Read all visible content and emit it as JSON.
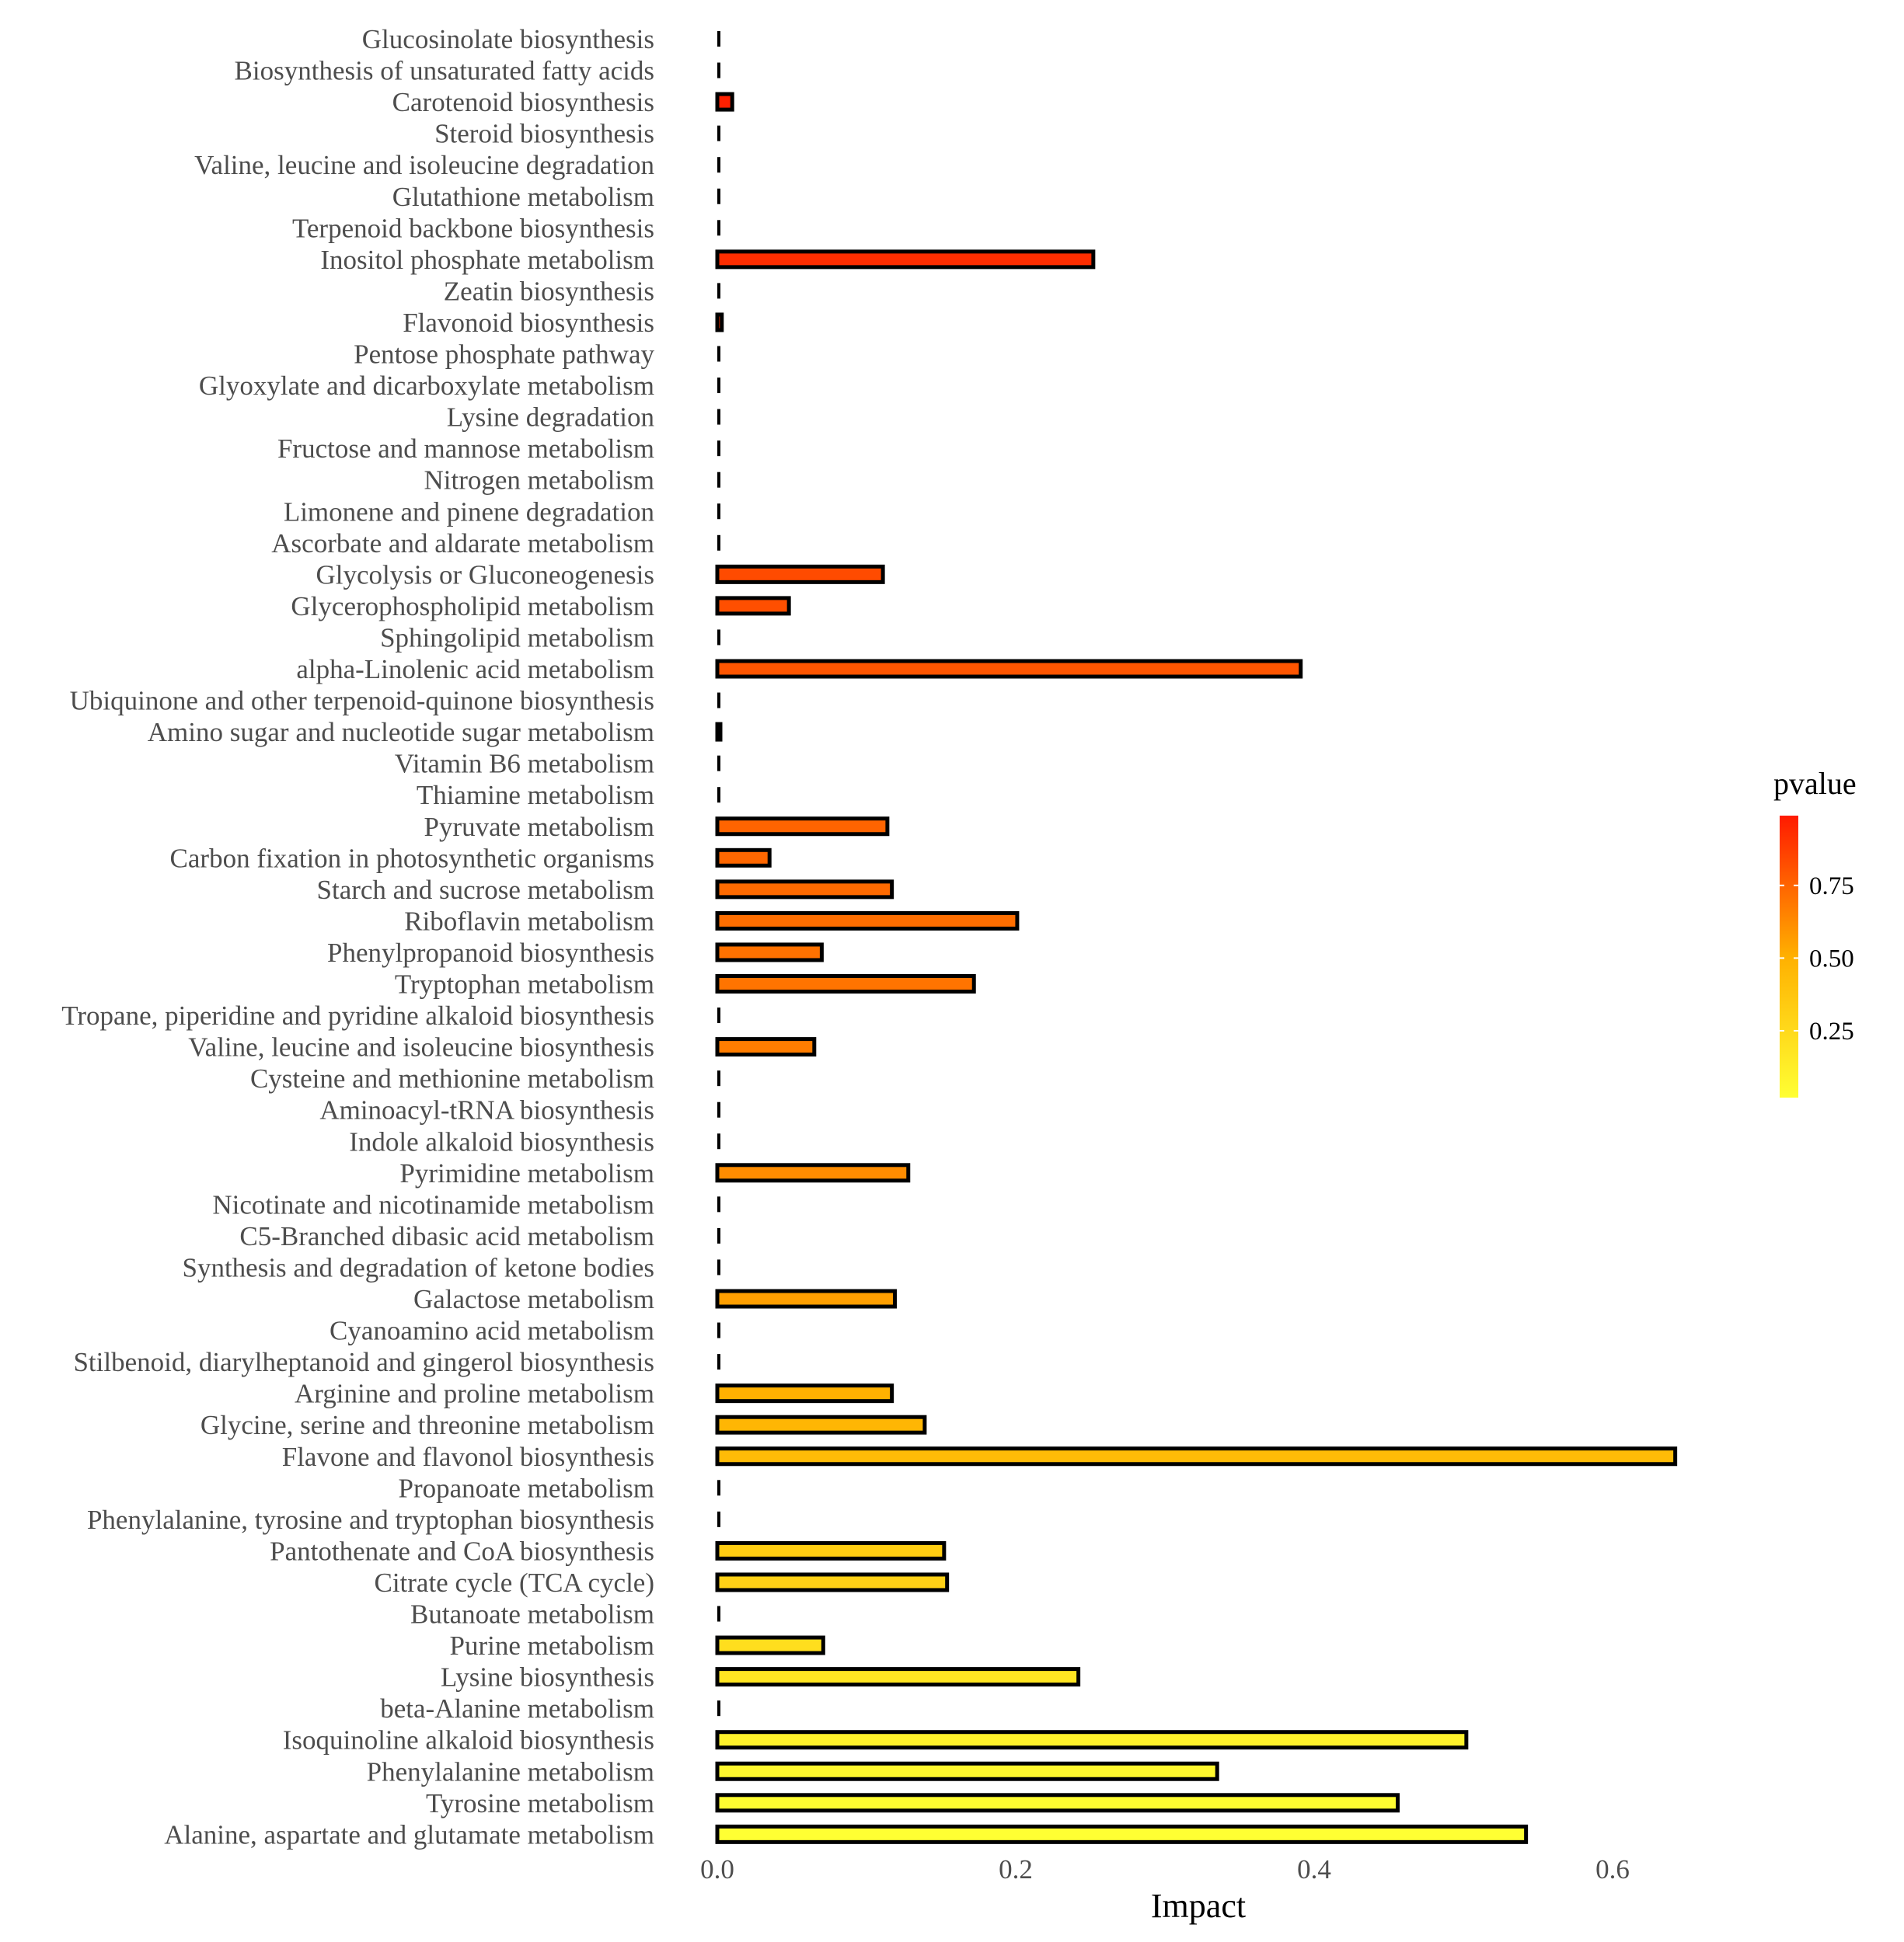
{
  "chart_data": {
    "type": "bar",
    "orientation": "horizontal",
    "xlabel": "Impact",
    "ylabel": "",
    "xlim": [
      0,
      0.7
    ],
    "xticks": [
      0.0,
      0.2,
      0.4,
      0.6
    ],
    "xtick_labels": [
      "0.0",
      "0.2",
      "0.4",
      "0.6"
    ],
    "grid": false,
    "legend": {
      "title": "pvalue",
      "placement": "right",
      "type": "colorbar",
      "ticks": [
        0.75,
        0.5,
        0.25
      ],
      "tick_labels": [
        "0.75",
        "0.50",
        "0.25"
      ],
      "range": [
        0.02,
        0.99
      ],
      "low_color": "#ffff33",
      "high_color": "#ff1a00"
    },
    "bar_outline_color": "#000000",
    "categories": [
      "Glucosinolate biosynthesis",
      "Biosynthesis of unsaturated fatty acids",
      "Carotenoid biosynthesis",
      "Steroid biosynthesis",
      "Valine, leucine and isoleucine degradation",
      "Glutathione metabolism",
      "Terpenoid backbone biosynthesis",
      "Inositol phosphate metabolism",
      "Zeatin biosynthesis",
      "Flavonoid biosynthesis",
      "Pentose phosphate pathway",
      "Glyoxylate and dicarboxylate metabolism",
      "Lysine degradation",
      "Fructose and mannose metabolism",
      "Nitrogen metabolism",
      "Limonene and pinene degradation",
      "Ascorbate and aldarate metabolism",
      "Glycolysis or Gluconeogenesis",
      "Glycerophospholipid metabolism",
      "Sphingolipid metabolism",
      "alpha-Linolenic acid metabolism",
      "Ubiquinone and other terpenoid-quinone biosynthesis",
      "Amino sugar and nucleotide sugar metabolism",
      "Vitamin B6 metabolism",
      "Thiamine metabolism",
      "Pyruvate metabolism",
      "Carbon fixation in photosynthetic organisms",
      "Starch and sucrose metabolism",
      "Riboflavin metabolism",
      "Phenylpropanoid biosynthesis",
      "Tryptophan metabolism",
      "Tropane, piperidine and pyridine alkaloid biosynthesis",
      "Valine, leucine and isoleucine biosynthesis",
      "Cysteine and methionine metabolism",
      "Aminoacyl-tRNA biosynthesis",
      "Indole alkaloid biosynthesis",
      "Pyrimidine metabolism",
      "Nicotinate and nicotinamide metabolism",
      "C5-Branched dibasic acid metabolism",
      "Synthesis and degradation of ketone bodies",
      "Galactose metabolism",
      "Cyanoamino acid metabolism",
      "Stilbenoid, diarylheptanoid and gingerol biosynthesis",
      "Arginine and proline metabolism",
      "Glycine, serine and threonine metabolism",
      "Flavone and flavonol biosynthesis",
      "Propanoate metabolism",
      "Phenylalanine, tyrosine and tryptophan biosynthesis",
      "Pantothenate and CoA biosynthesis",
      "Citrate cycle (TCA cycle)",
      "Butanoate metabolism",
      "Purine metabolism",
      "Lysine biosynthesis",
      "beta-Alanine metabolism",
      "Isoquinoline alkaloid biosynthesis",
      "Phenylalanine metabolism",
      "Tyrosine metabolism",
      "Alanine, aspartate and glutamate metabolism"
    ],
    "values": [
      0,
      0,
      0.01,
      0,
      0,
      0,
      0,
      0.252,
      0,
      0.003,
      0,
      0,
      0,
      0,
      0,
      0,
      0,
      0.111,
      0.048,
      0,
      0.391,
      0,
      0.002,
      0,
      0,
      0.114,
      0.035,
      0.117,
      0.201,
      0.07,
      0.172,
      0,
      0.065,
      0,
      0,
      0,
      0.128,
      0,
      0,
      0,
      0.119,
      0,
      0,
      0.117,
      0.139,
      0.642,
      0,
      0,
      0.152,
      0.154,
      0,
      0.071,
      0.242,
      0,
      0.502,
      0.335,
      0.456,
      0.542
    ],
    "pvalues": [
      0.99,
      0.98,
      0.97,
      0.96,
      0.95,
      0.95,
      0.94,
      0.93,
      0.92,
      0.91,
      0.9,
      0.89,
      0.88,
      0.87,
      0.86,
      0.85,
      0.84,
      0.83,
      0.82,
      0.81,
      0.8,
      0.79,
      0.78,
      0.77,
      0.76,
      0.75,
      0.74,
      0.73,
      0.72,
      0.71,
      0.7,
      0.69,
      0.67,
      0.66,
      0.65,
      0.64,
      0.62,
      0.61,
      0.6,
      0.58,
      0.56,
      0.55,
      0.53,
      0.5,
      0.47,
      0.44,
      0.4,
      0.37,
      0.33,
      0.3,
      0.26,
      0.22,
      0.18,
      0.14,
      0.1,
      0.07,
      0.04,
      0.02
    ]
  }
}
